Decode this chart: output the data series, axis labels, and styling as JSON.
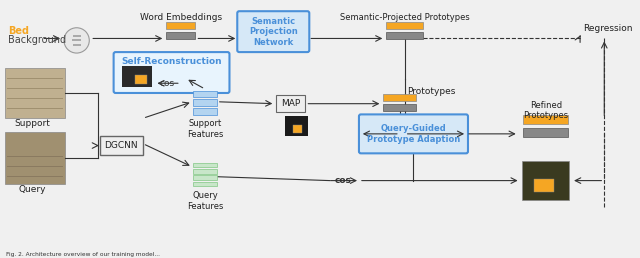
{
  "bg_color": "#f0f0f0",
  "colors": {
    "orange_bar": "#F5A623",
    "gray_bar": "#888888",
    "blue_box_fill": "#D6E8F7",
    "green_bar_fill": "#C8E6C9",
    "green_bar_stroke": "#81C784",
    "blue_bar_fill": "#B3D4F0",
    "blue_bar_stroke": "#4A90D9",
    "arrow_color": "#333333",
    "orange_text": "#F5A623",
    "box_border": "#4A90D9"
  },
  "labels": {
    "bed": "Bed",
    "background": "Background",
    "support": "Support",
    "query": "Query",
    "word_embeddings": "Word Embeddings",
    "spn": "Semantic\nProjection\nNetwork",
    "spp": "Semantic-Projected Prototypes",
    "self_recon": "Self-Reconstruction",
    "cos1": "cos",
    "support_features": "Support\nFeatures",
    "map": "MAP",
    "prototypes": "Prototypes",
    "qgpa": "Query-Guided\nPrototype Adaption",
    "query_features": "Query\nFeatures",
    "cos2": "cos",
    "dgcnn": "DGCNN",
    "regression": "Regression",
    "refined": "Refined\nPrototypes"
  }
}
